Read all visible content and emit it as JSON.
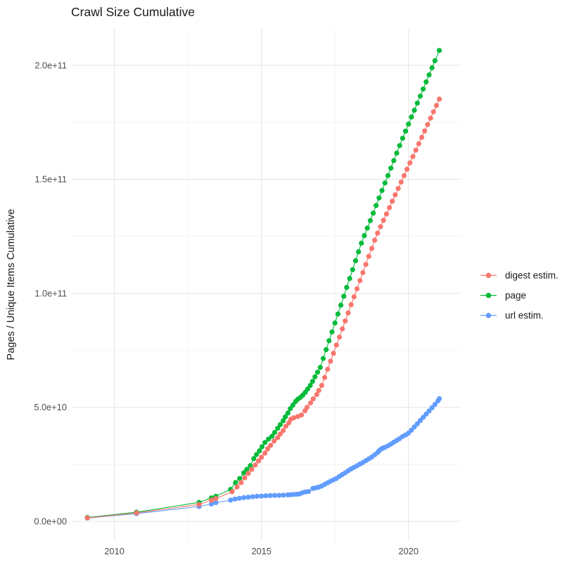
{
  "chart": {
    "title": "Crawl Size Cumulative",
    "y_axis_label": "Pages / Unique Items Cumulative"
  },
  "legend": {
    "items": [
      {
        "label": "digest estim.",
        "color": "#F8766D"
      },
      {
        "label": "page",
        "color": "#00BA38"
      },
      {
        "label": "url estim.",
        "color": "#619CFF"
      }
    ]
  },
  "colors": {
    "background": "#FFFFFF",
    "grid_major": "#E8E8E8",
    "grid_minor": "#F0F0F0",
    "tick_text": "#4D4D4D",
    "title_text": "#1A1A1A"
  },
  "chart_data": {
    "type": "scatter",
    "title": "Crawl Size Cumulative",
    "xlabel": "",
    "ylabel": "Pages / Unique Items Cumulative",
    "grid": true,
    "legend_position": "right",
    "x_range_years": [
      2008.55,
      2021.8
    ],
    "y_range_billions": [
      -8.6,
      216
    ],
    "x_ticks": {
      "years": [
        2010,
        2015,
        2020
      ],
      "labels": [
        "2010",
        "2015",
        "2020"
      ]
    },
    "x_minor_years": [
      2012.5,
      2017.5
    ],
    "y_ticks": {
      "values_billions": [
        0,
        50,
        100,
        150,
        200
      ],
      "labels": [
        "0.0e+00",
        "5.0e+10",
        "1.0e+11",
        "1.5e+11",
        "2.0e+11"
      ]
    },
    "y_minor_billions": [
      25,
      75,
      125,
      175
    ],
    "series": [
      {
        "name": "digest estim.",
        "color": "#F8766D",
        "points_year_billions": [
          [
            2009.08,
            1.5
          ],
          [
            2010.75,
            3.7
          ],
          [
            2012.88,
            7.4
          ],
          [
            2013.3,
            9.3
          ],
          [
            2013.45,
            10.0
          ],
          [
            2014.0,
            13.0
          ],
          [
            2014.17,
            15.1
          ],
          [
            2014.31,
            17.0
          ],
          [
            2014.43,
            19.1
          ],
          [
            2014.55,
            21.0
          ],
          [
            2014.67,
            22.8
          ],
          [
            2014.79,
            24.7
          ],
          [
            2014.9,
            26.5
          ],
          [
            2015.0,
            28.1
          ],
          [
            2015.12,
            29.9
          ],
          [
            2015.21,
            31.8
          ],
          [
            2015.31,
            33.3
          ],
          [
            2015.43,
            35.2
          ],
          [
            2015.55,
            36.7
          ],
          [
            2015.64,
            38.3
          ],
          [
            2015.74,
            39.8
          ],
          [
            2015.83,
            41.7
          ],
          [
            2015.93,
            43.2
          ],
          [
            2016.0,
            44.8
          ],
          [
            2016.1,
            45.4
          ],
          [
            2016.24,
            46.0
          ],
          [
            2016.36,
            46.6
          ],
          [
            2016.48,
            48.5
          ],
          [
            2016.55,
            50.0
          ],
          [
            2016.67,
            51.9
          ],
          [
            2016.76,
            53.7
          ],
          [
            2016.88,
            55.6
          ],
          [
            2016.95,
            57.4
          ],
          [
            2017.05,
            59.6
          ],
          [
            2017.15,
            63.1
          ],
          [
            2017.25,
            66.7
          ],
          [
            2017.35,
            70.2
          ],
          [
            2017.45,
            73.7
          ],
          [
            2017.55,
            77.3
          ],
          [
            2017.65,
            80.8
          ],
          [
            2017.75,
            84.4
          ],
          [
            2017.85,
            87.9
          ],
          [
            2017.95,
            91.4
          ],
          [
            2018.05,
            95.0
          ],
          [
            2018.15,
            98.5
          ],
          [
            2018.25,
            102.0
          ],
          [
            2018.35,
            105.6
          ],
          [
            2018.45,
            109.1
          ],
          [
            2018.55,
            112.7
          ],
          [
            2018.65,
            116.2
          ],
          [
            2018.75,
            119.7
          ],
          [
            2018.85,
            123.3
          ],
          [
            2018.95,
            126.4
          ],
          [
            2019.05,
            129.2
          ],
          [
            2019.15,
            132.0
          ],
          [
            2019.25,
            134.8
          ],
          [
            2019.35,
            137.6
          ],
          [
            2019.45,
            140.4
          ],
          [
            2019.55,
            143.2
          ],
          [
            2019.65,
            146.0
          ],
          [
            2019.75,
            148.8
          ],
          [
            2019.85,
            151.6
          ],
          [
            2019.95,
            154.4
          ],
          [
            2020.05,
            157.2
          ],
          [
            2020.15,
            160.0
          ],
          [
            2020.25,
            162.8
          ],
          [
            2020.35,
            165.6
          ],
          [
            2020.45,
            168.4
          ],
          [
            2020.55,
            171.2
          ],
          [
            2020.65,
            174.0
          ],
          [
            2020.75,
            176.8
          ],
          [
            2020.85,
            179.6
          ],
          [
            2020.95,
            182.4
          ],
          [
            2021.05,
            185.2
          ]
        ]
      },
      {
        "name": "page",
        "color": "#00BA38",
        "points_year_billions": [
          [
            2009.08,
            1.7
          ],
          [
            2010.75,
            4.0
          ],
          [
            2012.88,
            8.3
          ],
          [
            2013.3,
            10.3
          ],
          [
            2013.45,
            11.0
          ],
          [
            2013.95,
            14.0
          ],
          [
            2014.12,
            17.0
          ],
          [
            2014.26,
            18.8
          ],
          [
            2014.4,
            21.3
          ],
          [
            2014.5,
            22.8
          ],
          [
            2014.62,
            24.4
          ],
          [
            2014.74,
            27.5
          ],
          [
            2014.83,
            29.3
          ],
          [
            2014.93,
            30.9
          ],
          [
            2015.02,
            32.7
          ],
          [
            2015.12,
            34.6
          ],
          [
            2015.24,
            36.1
          ],
          [
            2015.36,
            37.3
          ],
          [
            2015.45,
            39.0
          ],
          [
            2015.55,
            40.8
          ],
          [
            2015.64,
            42.4
          ],
          [
            2015.74,
            44.1
          ],
          [
            2015.81,
            45.8
          ],
          [
            2015.9,
            47.5
          ],
          [
            2015.98,
            49.4
          ],
          [
            2016.07,
            51.0
          ],
          [
            2016.16,
            52.6
          ],
          [
            2016.24,
            53.6
          ],
          [
            2016.33,
            54.4
          ],
          [
            2016.41,
            55.4
          ],
          [
            2016.49,
            56.6
          ],
          [
            2016.57,
            58.0
          ],
          [
            2016.66,
            59.6
          ],
          [
            2016.74,
            61.4
          ],
          [
            2016.82,
            63.4
          ],
          [
            2016.91,
            65.4
          ],
          [
            2017.0,
            67.5
          ],
          [
            2017.1,
            71.4
          ],
          [
            2017.2,
            75.3
          ],
          [
            2017.3,
            79.2
          ],
          [
            2017.4,
            83.1
          ],
          [
            2017.5,
            87.0
          ],
          [
            2017.6,
            90.9
          ],
          [
            2017.7,
            94.8
          ],
          [
            2017.8,
            98.7
          ],
          [
            2017.9,
            102.6
          ],
          [
            2018.0,
            106.5
          ],
          [
            2018.1,
            110.4
          ],
          [
            2018.2,
            114.3
          ],
          [
            2018.3,
            118.2
          ],
          [
            2018.4,
            122.0
          ],
          [
            2018.5,
            125.3
          ],
          [
            2018.6,
            128.6
          ],
          [
            2018.7,
            131.9
          ],
          [
            2018.8,
            135.2
          ],
          [
            2018.9,
            138.5
          ],
          [
            2019.0,
            141.8
          ],
          [
            2019.1,
            145.1
          ],
          [
            2019.2,
            148.4
          ],
          [
            2019.3,
            151.6
          ],
          [
            2019.4,
            154.9
          ],
          [
            2019.5,
            158.2
          ],
          [
            2019.6,
            161.5
          ],
          [
            2019.7,
            164.8
          ],
          [
            2019.8,
            168.0
          ],
          [
            2019.9,
            171.1
          ],
          [
            2020.0,
            174.2
          ],
          [
            2020.1,
            177.3
          ],
          [
            2020.2,
            180.3
          ],
          [
            2020.3,
            183.4
          ],
          [
            2020.4,
            186.5
          ],
          [
            2020.5,
            189.6
          ],
          [
            2020.6,
            192.7
          ],
          [
            2020.7,
            195.8
          ],
          [
            2020.8,
            198.9
          ],
          [
            2020.9,
            202.0
          ],
          [
            2021.05,
            206.5
          ]
        ]
      },
      {
        "name": "url estim.",
        "color": "#619CFF",
        "points_year_billions": [
          [
            2009.08,
            1.4
          ],
          [
            2010.75,
            3.4
          ],
          [
            2012.88,
            6.5
          ],
          [
            2013.3,
            7.6
          ],
          [
            2013.45,
            8.2
          ],
          [
            2013.95,
            9.3
          ],
          [
            2014.1,
            9.8
          ],
          [
            2014.25,
            10.1
          ],
          [
            2014.4,
            10.4
          ],
          [
            2014.55,
            10.6
          ],
          [
            2014.7,
            10.8
          ],
          [
            2014.85,
            11.0
          ],
          [
            2015.0,
            11.1
          ],
          [
            2015.15,
            11.2
          ],
          [
            2015.3,
            11.3
          ],
          [
            2015.45,
            11.35
          ],
          [
            2015.6,
            11.4
          ],
          [
            2015.75,
            11.5
          ],
          [
            2015.9,
            11.6
          ],
          [
            2016.0,
            11.7
          ],
          [
            2016.1,
            11.8
          ],
          [
            2016.2,
            11.9
          ],
          [
            2016.3,
            12.0
          ],
          [
            2016.4,
            12.6
          ],
          [
            2016.5,
            12.9
          ],
          [
            2016.6,
            13.1
          ],
          [
            2016.75,
            14.4
          ],
          [
            2016.85,
            14.7
          ],
          [
            2016.95,
            15.0
          ],
          [
            2017.05,
            15.5
          ],
          [
            2017.15,
            16.2
          ],
          [
            2017.25,
            16.9
          ],
          [
            2017.35,
            17.6
          ],
          [
            2017.45,
            18.2
          ],
          [
            2017.55,
            18.8
          ],
          [
            2017.65,
            19.7
          ],
          [
            2017.75,
            20.5
          ],
          [
            2017.85,
            21.3
          ],
          [
            2017.95,
            22.2
          ],
          [
            2018.05,
            23.0
          ],
          [
            2018.15,
            23.7
          ],
          [
            2018.25,
            24.4
          ],
          [
            2018.35,
            25.1
          ],
          [
            2018.45,
            25.8
          ],
          [
            2018.55,
            26.6
          ],
          [
            2018.65,
            27.4
          ],
          [
            2018.75,
            28.2
          ],
          [
            2018.85,
            29.2
          ],
          [
            2018.95,
            30.2
          ],
          [
            2019.0,
            31.0
          ],
          [
            2019.05,
            31.5
          ],
          [
            2019.1,
            31.9
          ],
          [
            2019.15,
            32.2
          ],
          [
            2019.2,
            32.5
          ],
          [
            2019.3,
            33.1
          ],
          [
            2019.4,
            33.9
          ],
          [
            2019.5,
            34.7
          ],
          [
            2019.6,
            35.5
          ],
          [
            2019.7,
            36.3
          ],
          [
            2019.8,
            37.2
          ],
          [
            2019.9,
            37.9
          ],
          [
            2020.0,
            38.7
          ],
          [
            2020.1,
            40.0
          ],
          [
            2020.2,
            41.4
          ],
          [
            2020.3,
            42.8
          ],
          [
            2020.4,
            44.2
          ],
          [
            2020.5,
            45.6
          ],
          [
            2020.6,
            47.0
          ],
          [
            2020.7,
            48.4
          ],
          [
            2020.8,
            49.8
          ],
          [
            2020.9,
            51.3
          ],
          [
            2021.0,
            52.8
          ],
          [
            2021.05,
            53.8
          ]
        ]
      }
    ]
  }
}
